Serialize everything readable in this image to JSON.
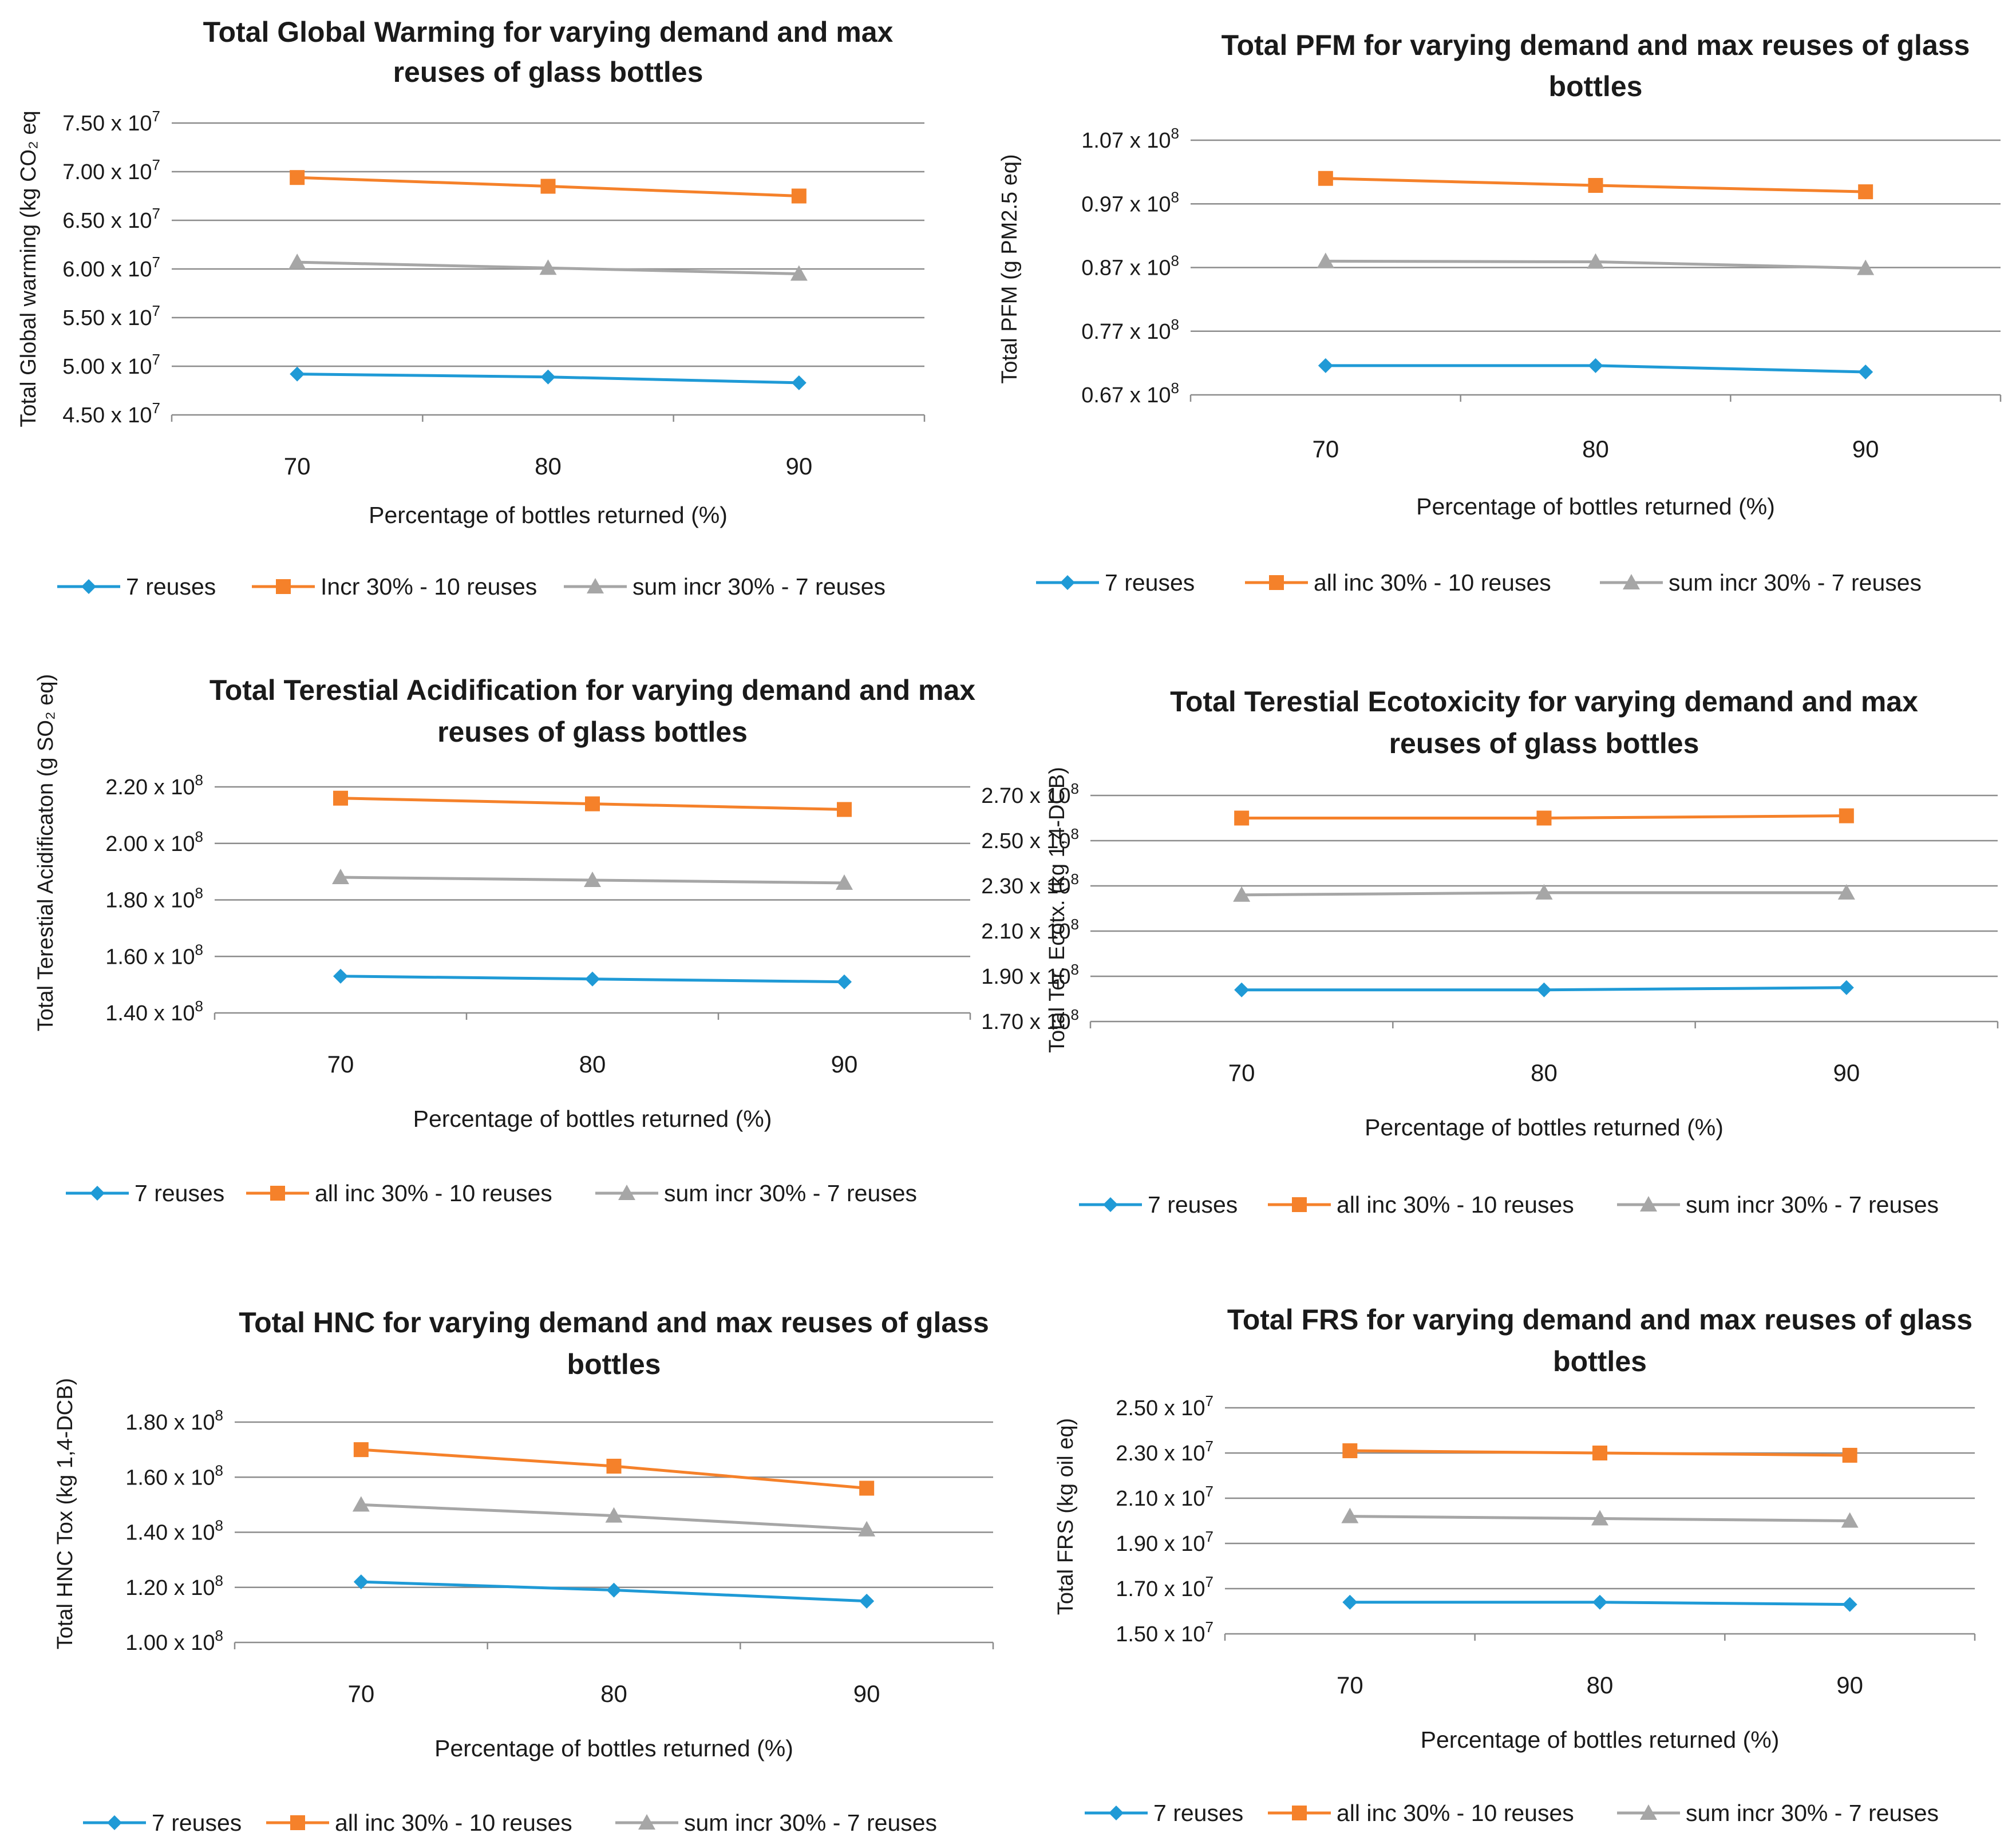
{
  "chart_data": [
    {
      "type": "line",
      "title": [
        "Total Global Warming for varying demand and max",
        "reuses of glass bottles"
      ],
      "ylabel": "Total Global warming (kg CO₂ eq",
      "xlabel": "Percentage of bottles returned (%)",
      "categories": [
        "70",
        "80",
        "90"
      ],
      "ylim": [
        45000000,
        75000000
      ],
      "yticks": [
        {
          "value": 75000000,
          "mant": "7.50",
          "exp": "7"
        },
        {
          "value": 70000000,
          "mant": "7.00",
          "exp": "7"
        },
        {
          "value": 65000000,
          "mant": "6.50",
          "exp": "7"
        },
        {
          "value": 60000000,
          "mant": "6.00",
          "exp": "7"
        },
        {
          "value": 55000000,
          "mant": "5.50",
          "exp": "7"
        },
        {
          "value": 50000000,
          "mant": "5.00",
          "exp": "7"
        },
        {
          "value": 45000000,
          "mant": "4.50",
          "exp": "7"
        }
      ],
      "series": [
        {
          "name": "7 reuses",
          "values": [
            49200000,
            48900000,
            48300000
          ]
        },
        {
          "name": "Incr 30% - 10 reuses",
          "values": [
            69400000,
            68500000,
            67500000
          ]
        },
        {
          "name": "sum incr 30% - 7 reuses",
          "values": [
            60700000,
            60100000,
            59500000
          ]
        }
      ],
      "legend": "bottom"
    },
    {
      "type": "line",
      "title": [
        "Total PFM for varying demand and max reuses of glass",
        "bottles"
      ],
      "ylabel": "Total  PFM  (g PM2.5 eq)",
      "xlabel": "Percentage of bottles returned (%)",
      "categories": [
        "70",
        "80",
        "90"
      ],
      "ylim": [
        67000000,
        107000000
      ],
      "yticks": [
        {
          "value": 107000000,
          "mant": "1.07",
          "exp": "8"
        },
        {
          "value": 97000000,
          "mant": "0.97",
          "exp": "8"
        },
        {
          "value": 87000000,
          "mant": "0.87",
          "exp": "8"
        },
        {
          "value": 77000000,
          "mant": "0.77",
          "exp": "8"
        },
        {
          "value": 67000000,
          "mant": "0.67",
          "exp": "8"
        }
      ],
      "series": [
        {
          "name": "7 reuses",
          "values": [
            71600000,
            71600000,
            70600000
          ]
        },
        {
          "name": "all inc 30%  - 10 reuses",
          "values": [
            101000000,
            99900000,
            98900000
          ]
        },
        {
          "name": "sum incr 30%  - 7 reuses",
          "values": [
            88000000,
            87900000,
            86900000
          ]
        }
      ],
      "legend": "bottom"
    },
    {
      "type": "line",
      "title": [
        "Total Terestial Acidification for varying demand and max",
        "reuses of glass bottles"
      ],
      "ylabel": "Total Terestial Acidificaton (g SO₂ eq)",
      "xlabel": "Percentage of bottles returned (%)",
      "categories": [
        "70",
        "80",
        "90"
      ],
      "ylim": [
        140000000,
        220000000
      ],
      "yticks": [
        {
          "value": 220000000,
          "mant": "2.20",
          "exp": "8"
        },
        {
          "value": 200000000,
          "mant": "2.00",
          "exp": "8"
        },
        {
          "value": 180000000,
          "mant": "1.80",
          "exp": "8"
        },
        {
          "value": 160000000,
          "mant": "1.60",
          "exp": "8"
        },
        {
          "value": 140000000,
          "mant": "1.40",
          "exp": "8"
        }
      ],
      "series": [
        {
          "name": "7 reuses",
          "values": [
            153000000,
            152000000,
            151000000
          ]
        },
        {
          "name": "all inc 30%  - 10 reuses",
          "values": [
            216000000,
            214000000,
            212000000
          ]
        },
        {
          "name": "sum incr 30%  - 7 reuses",
          "values": [
            188000000,
            187000000,
            186000000
          ]
        }
      ],
      "legend": "bottom"
    },
    {
      "type": "line",
      "title": [
        "Total Terestial Ecotoxicity for varying demand and max",
        "reuses of glass bottles"
      ],
      "ylabel": "Total Ter. Ecotx. (kg 1,4-DCB)",
      "xlabel": "Percentage of bottles returned (%)",
      "categories": [
        "70",
        "80",
        "90"
      ],
      "ylim": [
        170000000,
        270000000
      ],
      "yticks": [
        {
          "value": 270000000,
          "mant": "2.70",
          "exp": "8"
        },
        {
          "value": 250000000,
          "mant": "2.50",
          "exp": "8"
        },
        {
          "value": 230000000,
          "mant": "2.30",
          "exp": "8"
        },
        {
          "value": 210000000,
          "mant": "2.10",
          "exp": "8"
        },
        {
          "value": 190000000,
          "mant": "1.90",
          "exp": "8"
        },
        {
          "value": 170000000,
          "mant": "1.70",
          "exp": "8"
        }
      ],
      "series": [
        {
          "name": "7 reuses",
          "values": [
            184000000,
            184000000,
            185000000
          ]
        },
        {
          "name": "all inc 30%  - 10 reuses",
          "values": [
            260000000,
            260000000,
            261000000
          ]
        },
        {
          "name": "sum incr 30%  - 7 reuses",
          "values": [
            226000000,
            227000000,
            227000000
          ]
        }
      ],
      "legend": "bottom"
    },
    {
      "type": "line",
      "title": [
        "Total HNC for varying demand and max reuses of glass",
        "bottles"
      ],
      "ylabel": "Total  HNC Tox (kg 1,4-DCB)",
      "xlabel": "Percentage of bottles returned (%)",
      "categories": [
        "70",
        "80",
        "90"
      ],
      "ylim": [
        100000000,
        180000000
      ],
      "yticks": [
        {
          "value": 180000000,
          "mant": "1.80",
          "exp": "8"
        },
        {
          "value": 160000000,
          "mant": "1.60",
          "exp": "8"
        },
        {
          "value": 140000000,
          "mant": "1.40",
          "exp": "8"
        },
        {
          "value": 120000000,
          "mant": "1.20",
          "exp": "8"
        },
        {
          "value": 100000000,
          "mant": "1.00",
          "exp": "8"
        }
      ],
      "series": [
        {
          "name": "7 reuses",
          "values": [
            122000000,
            119000000,
            115000000
          ]
        },
        {
          "name": "all inc 30%  - 10 reuses",
          "values": [
            170000000,
            164000000,
            156000000
          ]
        },
        {
          "name": "sum incr 30%  - 7 reuses",
          "values": [
            150000000,
            146000000,
            141000000
          ]
        }
      ],
      "legend": "bottom"
    },
    {
      "type": "line",
      "title": [
        "Total FRS for varying demand and max reuses of glass",
        "bottles"
      ],
      "ylabel": "Total FRS (kg oil eq)",
      "xlabel": "Percentage of bottles returned (%)",
      "categories": [
        "70",
        "80",
        "90"
      ],
      "ylim": [
        15000000,
        25000000
      ],
      "yticks": [
        {
          "value": 25000000,
          "mant": "2.50",
          "exp": "7"
        },
        {
          "value": 23000000,
          "mant": "2.30",
          "exp": "7"
        },
        {
          "value": 21000000,
          "mant": "2.10",
          "exp": "7"
        },
        {
          "value": 19000000,
          "mant": "1.90",
          "exp": "7"
        },
        {
          "value": 17000000,
          "mant": "1.70",
          "exp": "7"
        },
        {
          "value": 15000000,
          "mant": "1.50",
          "exp": "7"
        }
      ],
      "series": [
        {
          "name": "7 reuses",
          "values": [
            16400000,
            16400000,
            16300000
          ]
        },
        {
          "name": "all inc 30%  - 10 reuses",
          "values": [
            23100000,
            23000000,
            22900000
          ]
        },
        {
          "name": "sum incr 30%  - 7 reuses",
          "values": [
            20200000,
            20100000,
            20000000
          ]
        }
      ],
      "legend": "bottom"
    }
  ],
  "series_colors": [
    "#1f9ad6",
    "#f5812a",
    "#a6a6a6"
  ],
  "series_markers": [
    "diamond",
    "square",
    "triangle"
  ]
}
